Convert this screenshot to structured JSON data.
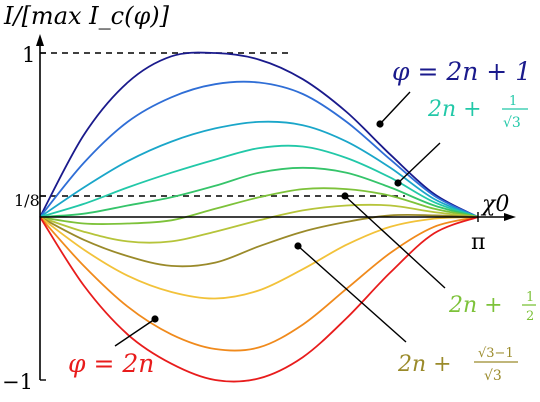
{
  "chart_data": {
    "type": "line",
    "ylabel": "I/[max I_c(φ)]",
    "xlabel": "χ0",
    "x_tick_labels": {
      "end": "π"
    },
    "y_tick_labels": {
      "top": "1",
      "one_eighth": "1/8",
      "bottom": "−1"
    },
    "xlim": [
      0,
      3.1416
    ],
    "ylim": [
      -1,
      1
    ],
    "reference_lines": [
      {
        "y": 1,
        "style": "dashed"
      },
      {
        "y": 0.125,
        "style": "dashed"
      }
    ],
    "x": [
      0,
      0.3142,
      0.6283,
      0.9425,
      1.2566,
      1.5708,
      1.885,
      2.1991,
      2.5133,
      2.8274,
      3.1416
    ],
    "series": [
      {
        "name": "φ = 2n + 1",
        "color": "#1a1a8c",
        "values": [
          0,
          0.5,
          0.82,
          0.98,
          1.0,
          0.96,
          0.84,
          0.64,
          0.38,
          0.14,
          0
        ]
      },
      {
        "color": "#2f6ed6",
        "values": [
          0,
          0.33,
          0.58,
          0.73,
          0.81,
          0.82,
          0.75,
          0.58,
          0.35,
          0.13,
          0
        ]
      },
      {
        "color": "#1aa6c9",
        "values": [
          0,
          0.18,
          0.34,
          0.46,
          0.54,
          0.58,
          0.56,
          0.46,
          0.3,
          0.11,
          0
        ]
      },
      {
        "name": "2n + 1/√3",
        "color": "#22c8a8",
        "values": [
          0,
          0.08,
          0.18,
          0.27,
          0.35,
          0.42,
          0.43,
          0.36,
          0.24,
          0.09,
          0
        ]
      },
      {
        "color": "#35c46a",
        "values": [
          0,
          0.02,
          0.07,
          0.12,
          0.19,
          0.27,
          0.3,
          0.27,
          0.18,
          0.07,
          0
        ]
      },
      {
        "name": "2n + 1/2",
        "color": "#7dc23a",
        "values": [
          0,
          -0.04,
          -0.04,
          -0.02,
          0.05,
          0.12,
          0.17,
          0.17,
          0.13,
          0.05,
          0
        ]
      },
      {
        "color": "#b6c43a",
        "values": [
          0,
          -0.09,
          -0.15,
          -0.15,
          -0.09,
          -0.02,
          0.04,
          0.07,
          0.07,
          0.03,
          0
        ]
      },
      {
        "name": "2n + (√3−1)/√3",
        "color": "#9a8a2a",
        "values": [
          0,
          -0.14,
          -0.24,
          -0.3,
          -0.28,
          -0.18,
          -0.09,
          -0.03,
          0.01,
          0.01,
          0
        ]
      },
      {
        "color": "#f2c23a",
        "values": [
          0,
          -0.2,
          -0.36,
          -0.46,
          -0.5,
          -0.45,
          -0.32,
          -0.17,
          -0.06,
          -0.01,
          0
        ]
      },
      {
        "color": "#f08a1c",
        "values": [
          0,
          -0.3,
          -0.55,
          -0.72,
          -0.81,
          -0.8,
          -0.66,
          -0.44,
          -0.22,
          -0.06,
          0
        ]
      },
      {
        "name": "φ = 2n",
        "color": "#e81c1c",
        "values": [
          0,
          -0.42,
          -0.72,
          -0.9,
          -1.0,
          -0.99,
          -0.86,
          -0.62,
          -0.34,
          -0.1,
          0
        ]
      }
    ]
  },
  "labels": {
    "top": "φ = 2n + 1",
    "sqrt3_prefix": "2n +",
    "sqrt3_num": "1",
    "sqrt3_den": "√3",
    "half_prefix": "2n +",
    "half_num": "1",
    "half_den": "2",
    "mix_prefix": "2n +",
    "mix_num": "√3−1",
    "mix_den": "√3",
    "bottom": "φ = 2n"
  }
}
